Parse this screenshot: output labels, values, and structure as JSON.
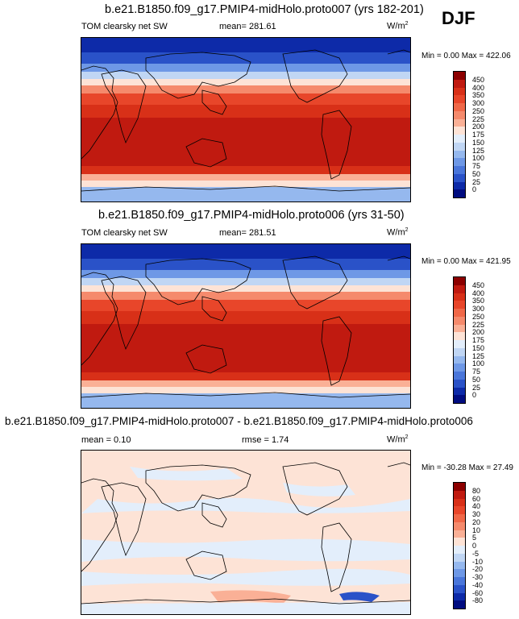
{
  "season": "DJF",
  "panels": [
    {
      "title": "b.e21.B1850.f09_g17.PMIP4-midHolo.proto007 (yrs 182-201)",
      "left_label": "TOM clearsky net SW",
      "mean": "mean= 281.61",
      "units": "W/m",
      "units_sup": "2",
      "minmax": "Min =   0.00 Max = 422.06",
      "cbar": {
        "labels": [
          "450",
          "400",
          "350",
          "300",
          "250",
          "225",
          "200",
          "175",
          "150",
          "125",
          "100",
          "75",
          "50",
          "25",
          "0"
        ],
        "colors": [
          "#8c0000",
          "#c01a10",
          "#d83018",
          "#e8462a",
          "#f06848",
          "#f58a6c",
          "#fab096",
          "#fde3d6",
          "#e3eefb",
          "#c0d6f4",
          "#95b8ee",
          "#6e98e6",
          "#4a76da",
          "#2a52c8",
          "#0d2aa8",
          "#000c80"
        ]
      }
    },
    {
      "title": "b.e21.B1850.f09_g17.PMIP4-midHolo.proto006 (yrs 31-50)",
      "left_label": "TOM clearsky net SW",
      "mean": "mean= 281.51",
      "units": "W/m",
      "units_sup": "2",
      "minmax": "Min =   0.00 Max = 421.95",
      "cbar": {
        "labels": [
          "450",
          "400",
          "350",
          "300",
          "250",
          "225",
          "200",
          "175",
          "150",
          "125",
          "100",
          "75",
          "50",
          "25",
          "0"
        ],
        "colors": [
          "#8c0000",
          "#c01a10",
          "#d83018",
          "#e8462a",
          "#f06848",
          "#f58a6c",
          "#fab096",
          "#fde3d6",
          "#e3eefb",
          "#c0d6f4",
          "#95b8ee",
          "#6e98e6",
          "#4a76da",
          "#2a52c8",
          "#0d2aa8",
          "#000c80"
        ]
      }
    },
    {
      "title": "b.e21.B1850.f09_g17.PMIP4-midHolo.proto007 - b.e21.B1850.f09_g17.PMIP4-midHolo.proto006",
      "mean": "mean =   0.10",
      "rmse": "rmse =   1.74",
      "units": "W/m",
      "units_sup": "2",
      "minmax": "Min = -30.28 Max =  27.49",
      "cbar": {
        "labels": [
          "80",
          "60",
          "40",
          "30",
          "20",
          "10",
          "5",
          "0",
          "-5",
          "-10",
          "-20",
          "-30",
          "-40",
          "-60",
          "-80"
        ],
        "colors": [
          "#8c0000",
          "#c01a10",
          "#d83018",
          "#e8462a",
          "#f06848",
          "#f58a6c",
          "#fab096",
          "#fde3d6",
          "#e3eefb",
          "#c0d6f4",
          "#95b8ee",
          "#6e98e6",
          "#4a76da",
          "#2a52c8",
          "#0d2aa8",
          "#000c80"
        ]
      }
    }
  ]
}
